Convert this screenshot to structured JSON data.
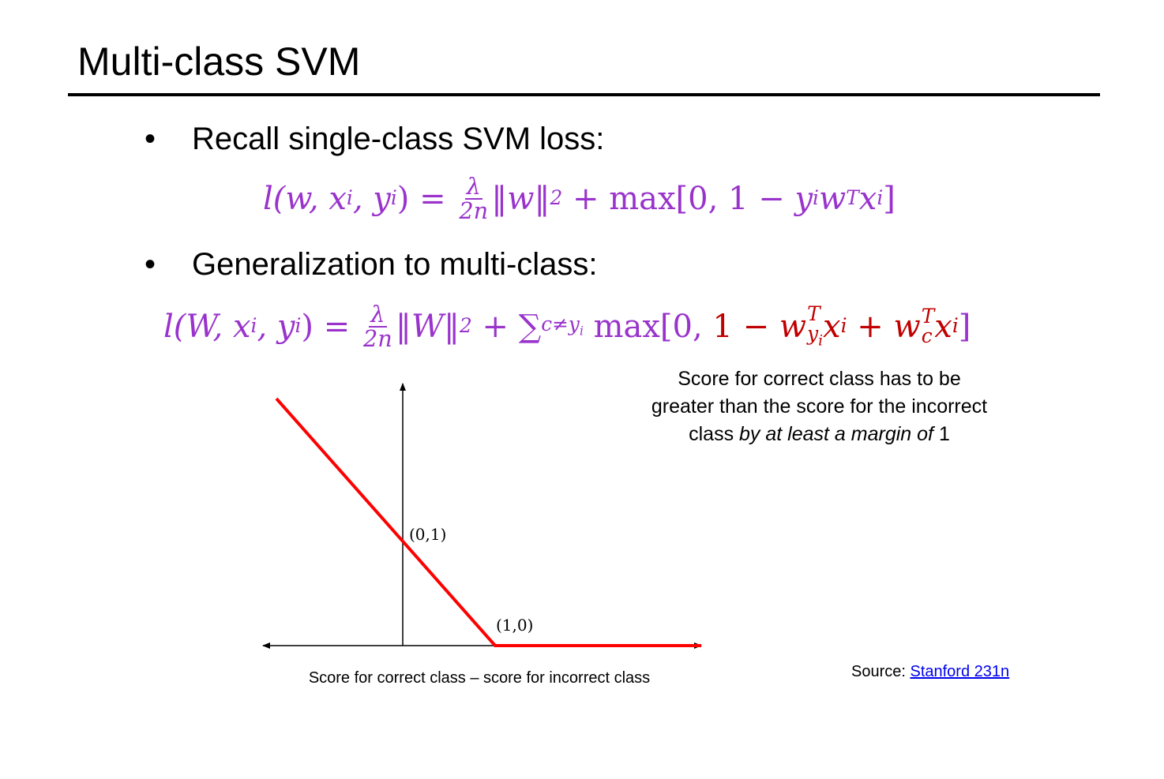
{
  "title": "Multi-class SVM",
  "bullets": [
    "Recall single-class SVM loss:",
    "Generalization to multi-class:"
  ],
  "formula1": [
    "l(w, x",
    "i",
    ", y",
    "i",
    ") = ",
    "λ",
    "2n",
    "‖w‖",
    "2",
    " + max[0, 1 − ",
    "y",
    "i",
    "w",
    "T",
    "x",
    "i",
    "]"
  ],
  "formula2": [
    "l(W, x",
    "i",
    ", y",
    "i",
    ") = ",
    "λ",
    "2n",
    "‖W‖",
    "2",
    " + ∑",
    "c≠y",
    "i",
    " max[0, ",
    "1 − ",
    "w",
    "T",
    "y",
    "i",
    "x",
    "i",
    " + ",
    "w",
    "T",
    "c",
    "x",
    "i",
    "]"
  ],
  "note": {
    "lines": [
      "Score for correct class has to be",
      "greater than the score for the incorrect",
      "class ",
      "by at least a margin of",
      " 1"
    ]
  },
  "plot": {
    "points": [
      "(0,1)",
      "(1,0)"
    ],
    "xlabel": "Score for correct class – score for incorrect class"
  },
  "source": {
    "label": "Source: ",
    "link": "Stanford 231n"
  }
}
